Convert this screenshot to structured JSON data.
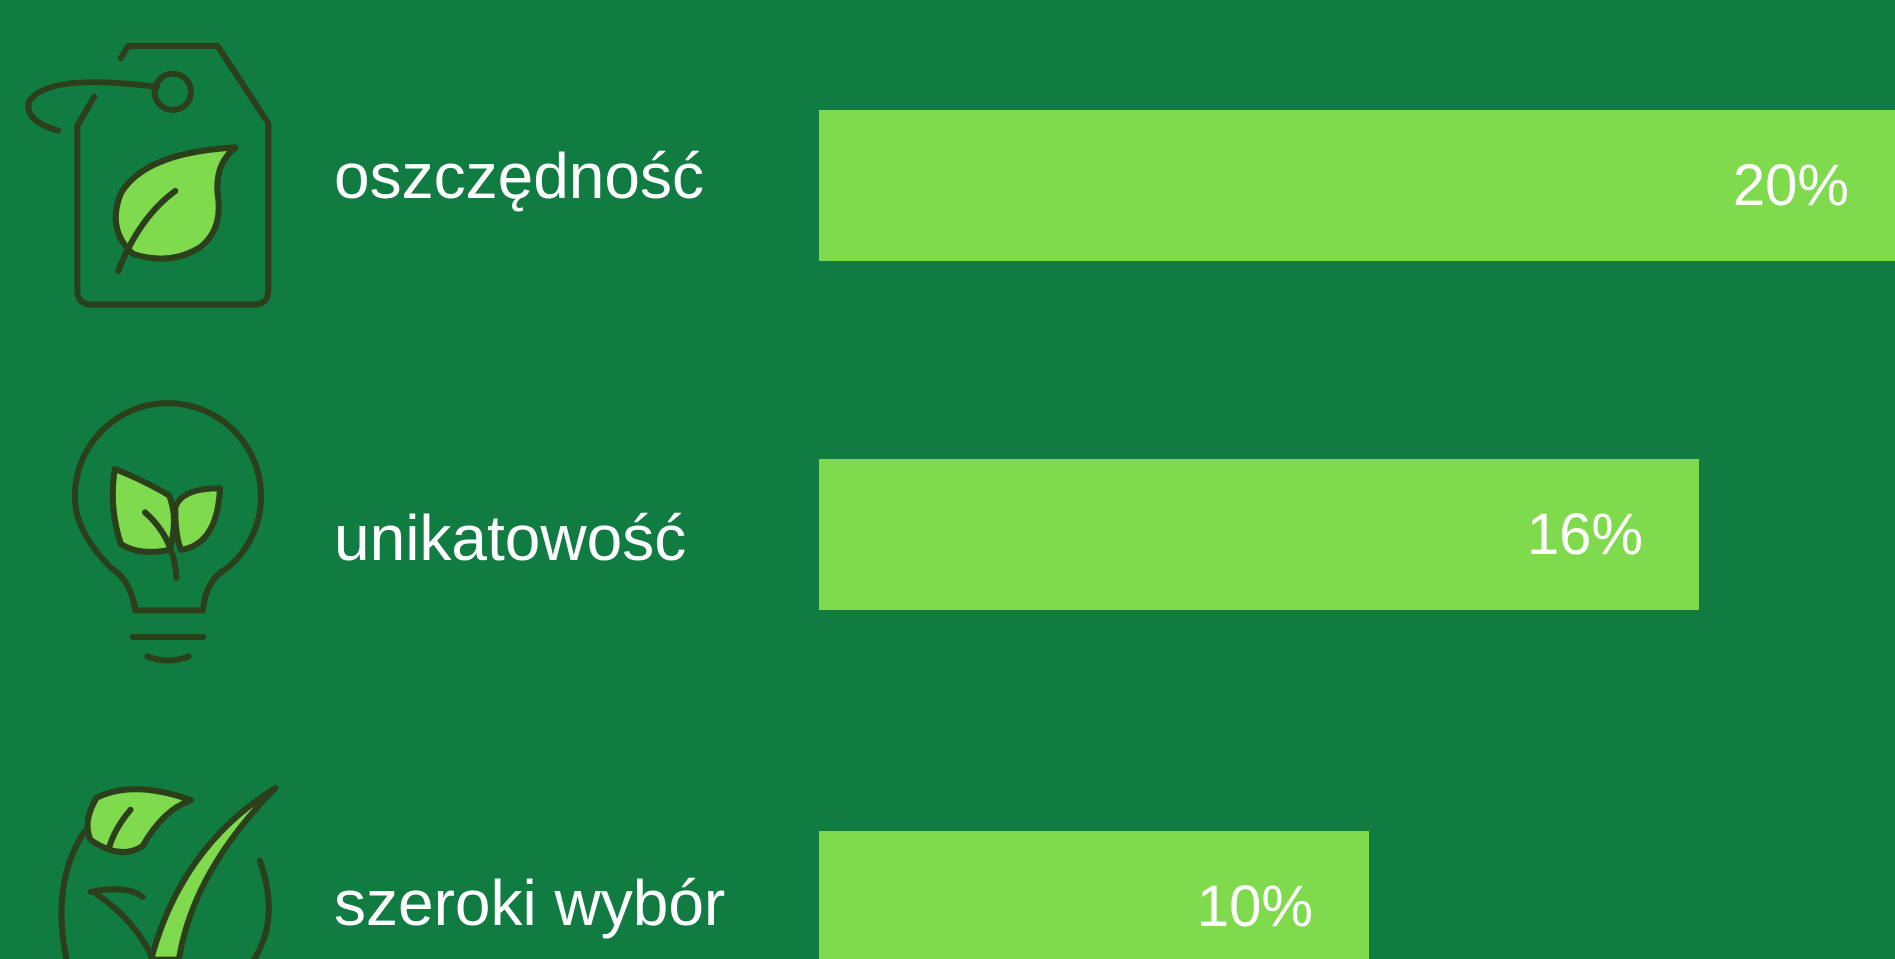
{
  "chart_data": {
    "type": "bar",
    "orientation": "horizontal",
    "categories": [
      "oszczędność",
      "unikatowość",
      "szeroki wybór"
    ],
    "values": [
      20,
      16,
      10
    ],
    "value_labels": [
      "20%",
      "16%",
      "10%"
    ],
    "color": "#80da4e"
  }
}
